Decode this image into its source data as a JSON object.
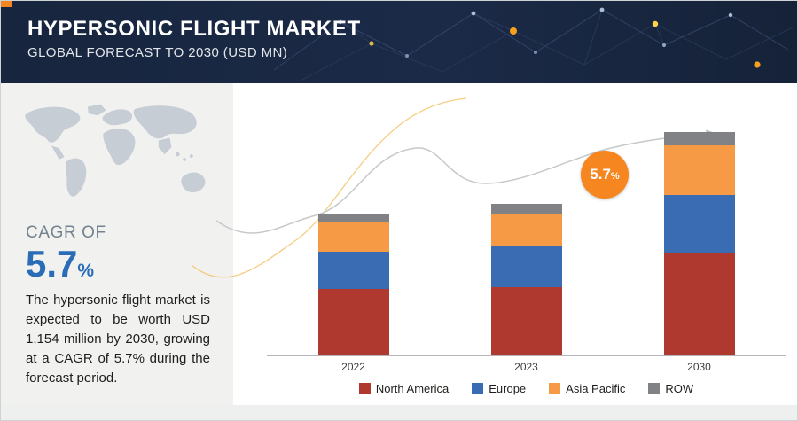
{
  "header": {
    "title": "HYPERSONIC FLIGHT MARKET",
    "subtitle": "GLOBAL FORECAST TO 2030 (USD MN)"
  },
  "sidebar": {
    "cagr_label": "CAGR OF",
    "cagr_value": "5.7",
    "cagr_unit": "%",
    "description": "The hypersonic flight market is expected to be worth USD 1,154 million by 2030, growing at a CAGR of 5.7% during the forecast period."
  },
  "chart": {
    "callout": {
      "value": "5.7",
      "unit": "%"
    }
  },
  "colors": {
    "accent_orange": "#f6861f",
    "header_navy": "#1b2a47",
    "sidebar_gray": "#f1f1ef",
    "cagr_blue": "#2a6db6",
    "north_america": "#b0392f",
    "europe": "#3a6cb4",
    "asia_pacific": "#f79a45",
    "row": "#808285"
  },
  "chart_data": {
    "type": "bar",
    "stacked": true,
    "title": "Hypersonic Flight Market, Global Forecast to 2030 (USD MN)",
    "categories": [
      "2022",
      "2023",
      "2030"
    ],
    "series": [
      {
        "name": "North America",
        "color": "#b0392f",
        "values": [
          345,
          355,
          525
        ]
      },
      {
        "name": "Europe",
        "color": "#3a6cb4",
        "values": [
          190,
          210,
          305
        ]
      },
      {
        "name": "Asia Pacific",
        "color": "#f79a45",
        "values": [
          150,
          165,
          258
        ]
      },
      {
        "name": "ROW",
        "color": "#808285",
        "values": [
          48,
          55,
          66
        ]
      }
    ],
    "totals": [
      733,
      785,
      1154
    ],
    "annotation": "5.7% CAGR toward 2030",
    "xlabel": "",
    "ylabel": "USD MN",
    "ylim": [
      0,
      1200
    ],
    "grid": false,
    "legend_position": "bottom"
  }
}
